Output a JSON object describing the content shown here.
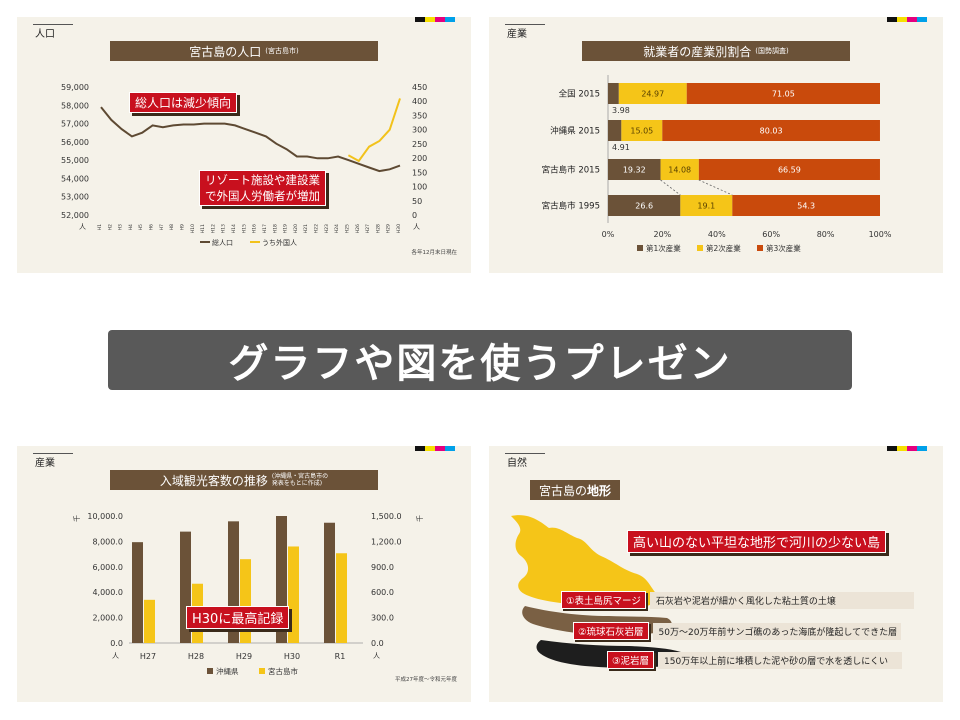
{
  "main_banner": "グラフや図を使うプレゼン",
  "cmyk_colors": [
    "#111111",
    "#f6e000",
    "#e4007f",
    "#00a0e9"
  ],
  "slide1": {
    "section": "人口",
    "title": "宮古島の人口",
    "title_sub": "(宮古島市)",
    "callout_top": "総人口は減少傾向",
    "callout_bottom_1": "リゾート施設や建設業",
    "callout_bottom_2": "で外国人労働者が増加",
    "footnote": "各年12月末日現在",
    "unit_left": "人",
    "unit_right": "人",
    "chart_data": {
      "type": "line",
      "x": [
        "H1",
        "H2",
        "H3",
        "H4",
        "H5",
        "H6",
        "H7",
        "H8",
        "H9",
        "H10",
        "H11",
        "H12",
        "H13",
        "H14",
        "H15",
        "H16",
        "H17",
        "H18",
        "H19",
        "H20",
        "H21",
        "H22",
        "H23",
        "H24",
        "H25",
        "H26",
        "H27",
        "H28",
        "H29",
        "H30"
      ],
      "y_left_ticks": [
        "59,000",
        "58,000",
        "57,000",
        "56,000",
        "55,000",
        "54,000",
        "53,000",
        "52,000"
      ],
      "y_right_ticks": [
        "450",
        "400",
        "350",
        "300",
        "250",
        "200",
        "150",
        "100",
        "50",
        "0"
      ],
      "y_left_range": [
        52000,
        59000
      ],
      "y_right_range": [
        0,
        450
      ],
      "series": [
        {
          "name": "総人口",
          "axis": "left",
          "color": "#5e4a33",
          "values": [
            57900,
            57200,
            56700,
            56300,
            56500,
            56900,
            56800,
            56900,
            56950,
            56950,
            57000,
            57000,
            57000,
            56900,
            56700,
            56500,
            56300,
            55900,
            55600,
            55200,
            55200,
            55100,
            55100,
            55200,
            55000,
            54800,
            54600,
            54400,
            54500,
            54700
          ]
        },
        {
          "name": "うち外国人",
          "axis": "right",
          "color": "#f2c21b",
          "values": [
            null,
            null,
            null,
            null,
            null,
            null,
            null,
            null,
            null,
            null,
            null,
            null,
            null,
            null,
            null,
            null,
            null,
            null,
            null,
            null,
            null,
            null,
            null,
            null,
            210,
            190,
            240,
            260,
            300,
            410
          ]
        }
      ]
    }
  },
  "slide2": {
    "section": "産業",
    "title": "就業者の産業別割合",
    "title_sub": "(国勢調査)",
    "chart_data": {
      "type": "bar",
      "orientation": "horizontal-stacked",
      "categories": [
        "全国 2015",
        "沖縄県 2015",
        "宮古島市 2015",
        "宮古島市 1995"
      ],
      "x_ticks": [
        "0%",
        "20%",
        "40%",
        "60%",
        "80%",
        "100%"
      ],
      "series": [
        {
          "name": "第1次産業",
          "color": "#6b5238",
          "values": [
            3.98,
            4.91,
            19.32,
            26.6
          ]
        },
        {
          "name": "第2次産業",
          "color": "#f5c518",
          "values": [
            24.97,
            15.05,
            14.08,
            19.1
          ]
        },
        {
          "name": "第3次産業",
          "color": "#c94a0c",
          "values": [
            71.05,
            80.03,
            66.59,
            54.3
          ]
        }
      ],
      "labels": [
        [
          "3.98",
          "24.97",
          "71.05"
        ],
        [
          "4.91",
          "15.05",
          "80.03"
        ],
        [
          "19.32",
          "14.08",
          "66.59"
        ],
        [
          "26.6",
          "19.1",
          "54.3"
        ]
      ]
    }
  },
  "slide3": {
    "section": "産業",
    "title": "入域観光客数の推移",
    "title_sub_1": "(沖縄県・宮古島市の",
    "title_sub_2": "発表をもとに作成)",
    "callout": "H30に最高記録",
    "unit_left_top": "千",
    "unit_right_top": "千",
    "unit_left_bottom": "人",
    "unit_right_bottom": "人",
    "footnote": "平成27年度〜令和元年度",
    "chart_data": {
      "type": "bar",
      "categories": [
        "H27",
        "H28",
        "H29",
        "H30",
        "R1"
      ],
      "y_left_ticks": [
        "10,000.0",
        "8,000.0",
        "6,000.0",
        "4,000.0",
        "2,000.0",
        "0.0"
      ],
      "y_right_ticks": [
        "1,500.0",
        "1,200.0",
        "900.0",
        "600.0",
        "300.0",
        "0.0"
      ],
      "y_left_range": [
        0,
        10000
      ],
      "y_right_range": [
        0,
        1500
      ],
      "series": [
        {
          "name": "沖縄県",
          "axis": "left",
          "color": "#6b5238",
          "values": [
            7940,
            8770,
            9580,
            10000,
            9470
          ]
        },
        {
          "name": "宮古島市",
          "axis": "right",
          "color": "#f5c518",
          "values": [
            510,
            700,
            990,
            1140,
            1060
          ]
        }
      ]
    }
  },
  "slide4": {
    "section": "自然",
    "title_plain": "宮古島の",
    "title_bold": "地形",
    "headline": "高い山のない平坦な地形で河川の少ない島",
    "layers": [
      {
        "tag": "①表土島尻マージ",
        "desc": "石灰岩や泥岩が細かく風化した粘土質の土壌"
      },
      {
        "tag": "②琉球石灰岩層",
        "desc": "50万〜20万年前サンゴ礁のあった海底が隆起してできた層"
      },
      {
        "tag": "③泥岩層",
        "desc": "150万年以上前に堆積した泥や砂の層で水を透しにくい"
      }
    ]
  }
}
